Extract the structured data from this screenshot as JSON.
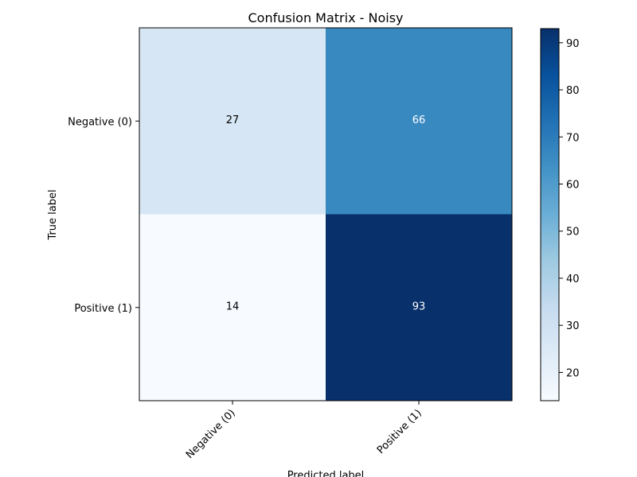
{
  "chart_data": {
    "type": "heatmap",
    "title": "Confusion Matrix - Noisy",
    "xlabel": "Predicted label",
    "ylabel": "True label",
    "x_categories": [
      "Negative (0)",
      "Positive (1)"
    ],
    "y_categories": [
      "Negative (0)",
      "Positive (1)"
    ],
    "matrix": [
      [
        27,
        66
      ],
      [
        14,
        93
      ]
    ],
    "colormap": "Blues",
    "colorbar": {
      "min": 14,
      "max": 93,
      "ticks": [
        20,
        30,
        40,
        50,
        60,
        70,
        80,
        90
      ]
    },
    "grid": false,
    "colors": {
      "low": "#f7fbff",
      "high": "#08306b",
      "text_dark": "#000000",
      "text_light": "#ffffff"
    }
  }
}
